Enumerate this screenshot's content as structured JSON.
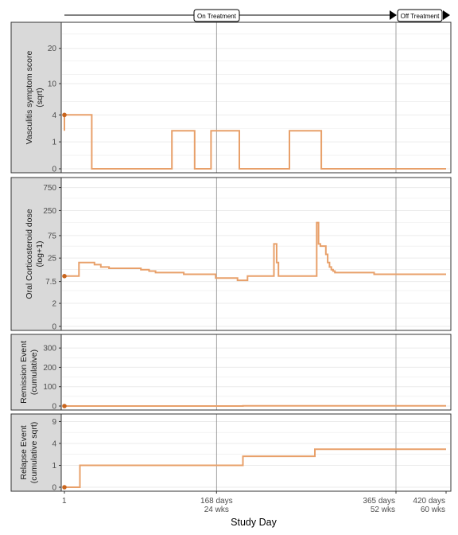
{
  "timeline": {
    "on_label": "On Treatment",
    "off_label": "Off Treatment",
    "on_start": 1,
    "off_start": 365,
    "end": 420
  },
  "colors": {
    "line": "#e8a06a",
    "point": "#c8651e",
    "grid": "#ebebeb",
    "ref_line": "#8a8a8a",
    "strip_bg": "#d9d9d9",
    "panel_border": "#333333",
    "text": "#4d4d4d"
  },
  "x_axis": {
    "label": "Study Day",
    "range": [
      1,
      420
    ],
    "ref_lines": [
      168,
      365
    ],
    "ticks": [
      {
        "value": 1,
        "line1": "1",
        "line2": ""
      },
      {
        "value": 168,
        "line1": "168 days",
        "line2": "24 wks"
      },
      {
        "value": 365,
        "line1": "365 days",
        "line2": "52 wks"
      },
      {
        "value": 420,
        "line1": "420 days",
        "line2": "60 wks"
      }
    ]
  },
  "chart_data": [
    {
      "type": "line",
      "title": "",
      "strip_line1": "Vasculitis symptom score",
      "strip_line2": "(sqrt)",
      "y_transform": "sqrt",
      "ylim": [
        0,
        28
      ],
      "y_ticks": [
        0,
        1,
        4,
        10,
        20
      ],
      "minor_ticks": [
        0.25,
        2.25,
        6.25,
        12.25,
        16,
        25
      ],
      "start_point": {
        "x": 1,
        "y": 4
      },
      "series": [
        {
          "x": [
            1,
            1,
            31,
            31,
            119,
            119,
            144,
            144,
            162,
            162,
            193,
            193,
            193,
            248,
            248,
            283,
            283,
            420
          ],
          "y": [
            2,
            4,
            4,
            0,
            0,
            2,
            2,
            0,
            0,
            2,
            2,
            1,
            0,
            0,
            2,
            2,
            0,
            0
          ]
        }
      ]
    },
    {
      "type": "line",
      "title": "",
      "strip_line1": "Oral Corticosteroid dose",
      "strip_line2": "(log+1)",
      "y_transform": "log1p",
      "ylim": [
        0,
        1000
      ],
      "y_ticks": [
        0,
        2,
        7.5,
        25,
        75,
        250,
        750
      ],
      "minor_ticks": [
        0.5,
        4.5,
        14,
        45,
        140,
        450
      ],
      "start_point": {
        "x": 1,
        "y": 10
      },
      "series": [
        {
          "x": [
            1,
            17,
            17,
            34,
            34,
            41,
            41,
            50,
            50,
            85,
            85,
            94,
            94,
            101,
            101,
            132,
            132,
            167,
            167,
            191,
            191,
            202,
            202,
            231,
            231,
            234,
            234,
            234,
            234,
            236,
            236,
            236,
            236,
            278,
            278,
            280,
            280,
            282,
            282,
            288,
            288,
            290,
            290,
            292,
            292,
            294,
            294,
            296,
            296,
            298,
            298,
            341,
            341,
            420
          ],
          "y": [
            10,
            10,
            20,
            20,
            18,
            18,
            16,
            16,
            15,
            15,
            14,
            14,
            13,
            13,
            12,
            12,
            11,
            11,
            9,
            9,
            8,
            8,
            10,
            10,
            50,
            50,
            35,
            35,
            20,
            20,
            15,
            15,
            10,
            10,
            140,
            140,
            50,
            50,
            45,
            45,
            30,
            30,
            20,
            20,
            16,
            16,
            14,
            14,
            13,
            13,
            12,
            12,
            11,
            11
          ]
        }
      ]
    },
    {
      "type": "line",
      "title": "",
      "strip_line1": "Remission Event",
      "strip_line2": "(cumulative)",
      "y_transform": "linear",
      "ylim": [
        0,
        350
      ],
      "y_ticks": [
        0,
        100,
        200,
        300
      ],
      "minor_ticks": [
        50,
        150,
        250
      ],
      "start_point": {
        "x": 1,
        "y": 0
      },
      "series": [
        {
          "x": [
            1,
            197,
            197,
            420
          ],
          "y": [
            0,
            0,
            1,
            1
          ]
        }
      ]
    },
    {
      "type": "line",
      "title": "",
      "strip_line1": "Relapse Event",
      "strip_line2": "(cumulative sqrt)",
      "y_transform": "sqrt",
      "ylim": [
        0,
        10
      ],
      "y_ticks": [
        0,
        1,
        4,
        9
      ],
      "minor_ticks": [
        2.25,
        6.25
      ],
      "start_point": {
        "x": 1,
        "y": 0
      },
      "series": [
        {
          "x": [
            1,
            18,
            18,
            197,
            197,
            276,
            276,
            420
          ],
          "y": [
            0,
            0,
            1,
            1,
            2,
            2,
            3,
            3
          ]
        }
      ]
    }
  ]
}
